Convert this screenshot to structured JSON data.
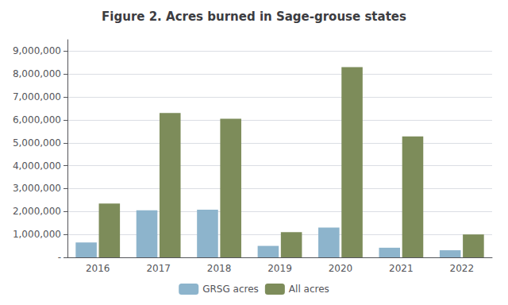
{
  "chart_data": {
    "type": "bar",
    "title": "Figure 2. Acres burned in Sage-grouse states",
    "categories": [
      "2016",
      "2017",
      "2018",
      "2019",
      "2020",
      "2021",
      "2022"
    ],
    "series": [
      {
        "name": "GRSG acres",
        "color": "#8db4cc",
        "values": [
          650000,
          2050000,
          2080000,
          500000,
          1300000,
          420000,
          310000
        ]
      },
      {
        "name": "All acres",
        "color": "#7d8c5a",
        "values": [
          2350000,
          6300000,
          6050000,
          1100000,
          8300000,
          5280000,
          1000000
        ]
      }
    ],
    "ylim": [
      0,
      9500000
    ],
    "yticks": [
      {
        "value": 0,
        "label": "-"
      },
      {
        "value": 1000000,
        "label": "1,000,000"
      },
      {
        "value": 2000000,
        "label": "2,000,000"
      },
      {
        "value": 3000000,
        "label": "3,000,000"
      },
      {
        "value": 4000000,
        "label": "4,000,000"
      },
      {
        "value": 5000000,
        "label": "5,000,000"
      },
      {
        "value": 6000000,
        "label": "6,000,000"
      },
      {
        "value": 7000000,
        "label": "7,000,000"
      },
      {
        "value": 8000000,
        "label": "8,000,000"
      },
      {
        "value": 9000000,
        "label": "9,000,000"
      }
    ],
    "grid": true,
    "legend": "bottom"
  }
}
